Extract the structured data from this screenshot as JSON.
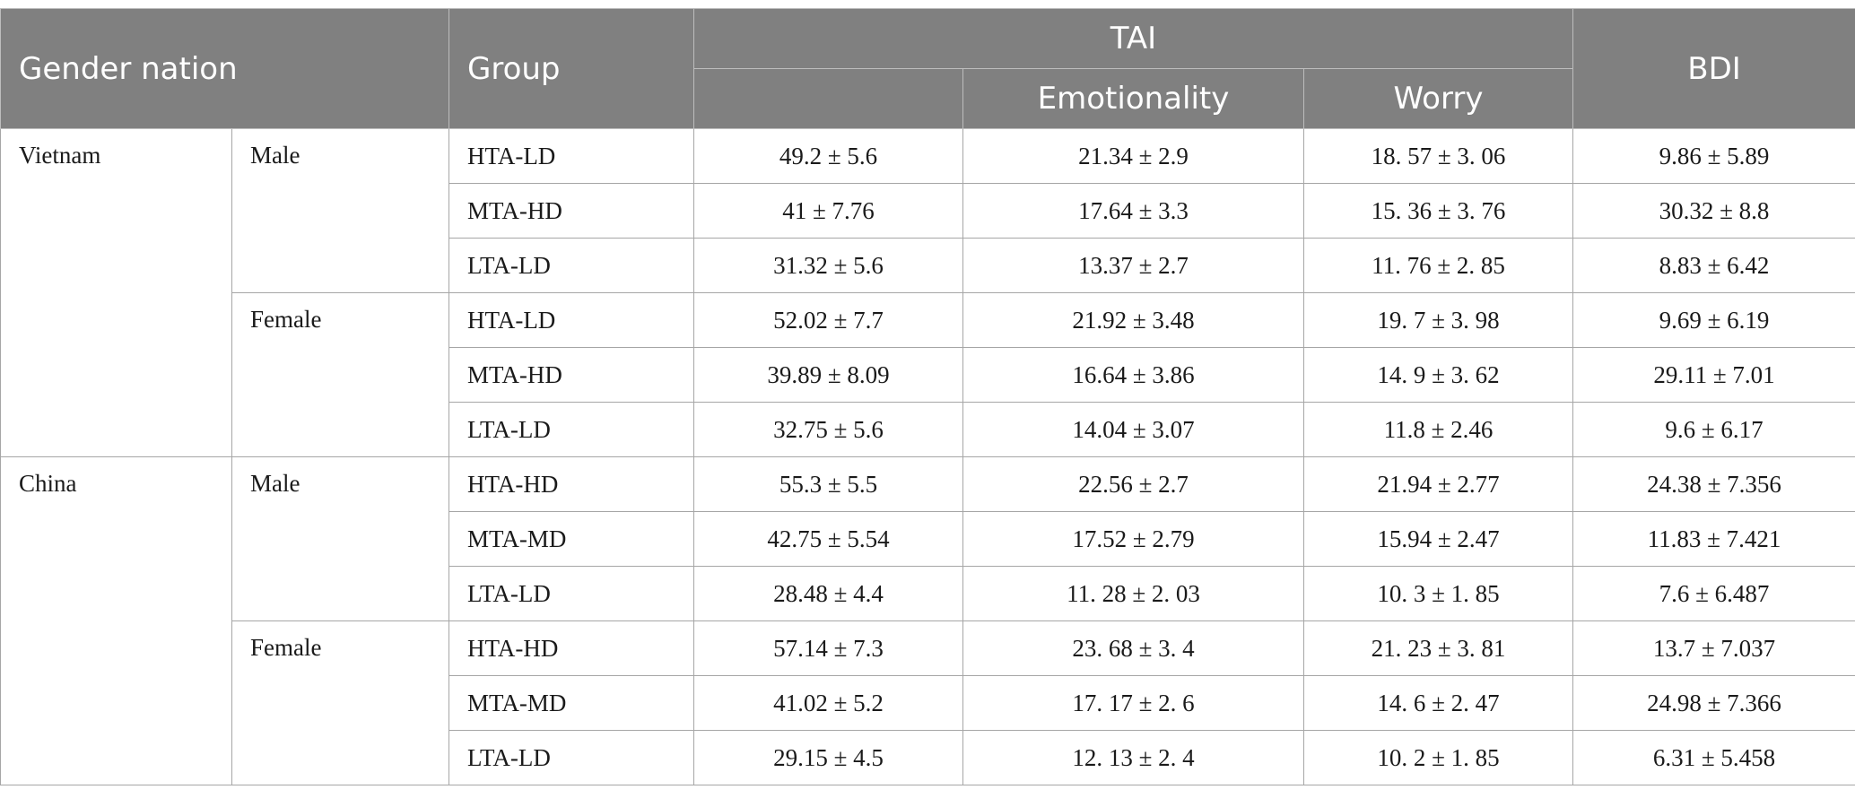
{
  "header": {
    "gender_nation": "Gender nation",
    "group": "Group",
    "tai": "TAI",
    "bdi": "BDI",
    "emotionality": "Emotionality",
    "worry": "Worry"
  },
  "sections": [
    {
      "nation": "Vietnam",
      "genders": [
        {
          "gender": "Male",
          "rows": [
            {
              "group": "HTA-LD",
              "tai": "49.2 ± 5.6",
              "emotionality": "21.34 ± 2.9",
              "worry": "18. 57 ± 3. 06",
              "bdi": "9.86 ± 5.89"
            },
            {
              "group": "MTA-HD",
              "tai": "41 ± 7.76",
              "emotionality": "17.64 ± 3.3",
              "worry": "15. 36 ± 3. 76",
              "bdi": "30.32 ± 8.8"
            },
            {
              "group": "LTA-LD",
              "tai": "31.32 ± 5.6",
              "emotionality": "13.37 ± 2.7",
              "worry": "11. 76 ± 2. 85",
              "bdi": "8.83 ± 6.42"
            }
          ]
        },
        {
          "gender": "Female",
          "rows": [
            {
              "group": "HTA-LD",
              "tai": "52.02 ± 7.7",
              "emotionality": "21.92 ± 3.48",
              "worry": "19. 7 ± 3. 98",
              "bdi": "9.69 ± 6.19"
            },
            {
              "group": "MTA-HD",
              "tai": "39.89 ± 8.09",
              "emotionality": "16.64 ± 3.86",
              "worry": "14. 9 ± 3. 62",
              "bdi": "29.11 ± 7.01"
            },
            {
              "group": "LTA-LD",
              "tai": "32.75 ± 5.6",
              "emotionality": "14.04 ± 3.07",
              "worry": "11.8 ± 2.46",
              "bdi": "9.6 ± 6.17"
            }
          ]
        }
      ]
    },
    {
      "nation": "China",
      "genders": [
        {
          "gender": "Male",
          "rows": [
            {
              "group": "HTA-HD",
              "tai": "55.3 ± 5.5",
              "emotionality": "22.56 ± 2.7",
              "worry": "21.94 ± 2.77",
              "bdi": "24.38 ± 7.356"
            },
            {
              "group": "MTA-MD",
              "tai": "42.75 ± 5.54",
              "emotionality": "17.52 ± 2.79",
              "worry": "15.94 ± 2.47",
              "bdi": "11.83 ± 7.421"
            },
            {
              "group": "LTA-LD",
              "tai": "28.48 ± 4.4",
              "emotionality": "11. 28 ± 2. 03",
              "worry": "10. 3 ± 1. 85",
              "bdi": "7.6 ± 6.487"
            }
          ]
        },
        {
          "gender": "Female",
          "rows": [
            {
              "group": "HTA-HD",
              "tai": "57.14 ± 7.3",
              "emotionality": "23. 68 ± 3. 4",
              "worry": "21. 23 ± 3. 81",
              "bdi": "13.7 ± 7.037"
            },
            {
              "group": "MTA-MD",
              "tai": "41.02 ± 5.2",
              "emotionality": "17. 17 ± 2. 6",
              "worry": "14. 6 ± 2. 47",
              "bdi": "24.98 ± 7.366"
            },
            {
              "group": "LTA-LD",
              "tai": "29.15 ± 4.5",
              "emotionality": "12. 13 ± 2. 4",
              "worry": "10. 2 ± 1. 85",
              "bdi": "6.31 ± 5.458"
            }
          ]
        }
      ]
    }
  ]
}
